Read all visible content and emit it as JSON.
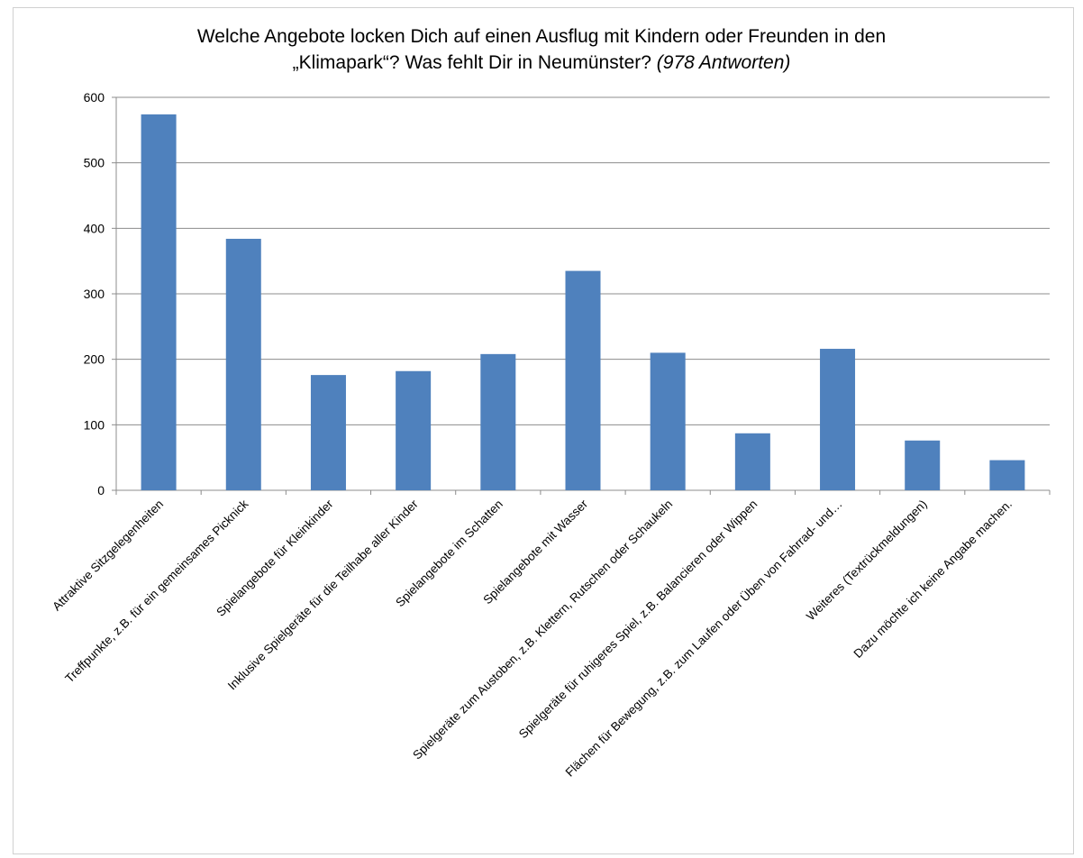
{
  "chart_data": {
    "type": "bar",
    "title_line1": "Welche Angebote locken Dich auf einen Ausflug mit Kindern oder Freunden in den",
    "title_line2": "„Klimapark“? Was fehlt Dir in Neumünster?",
    "title_suffix": "(978 Antworten)",
    "xlabel": "",
    "ylabel": "",
    "ylim": [
      0,
      600
    ],
    "yticks": [
      "0",
      "100",
      "200",
      "300",
      "400",
      "500",
      "600"
    ],
    "grid": true,
    "legend": "none",
    "bar_color": "#4f81bd",
    "categories": [
      "Attraktive Sitzgelegenheiten",
      "Treffpunkte, z.B. für ein gemeinsames Picknick",
      "Spielangebote für Kleinkinder",
      "Inklusive Spielgeräte für die Teilhabe aller Kinder",
      "Spielangebote im Schatten",
      "Spielangebote mit Wasser",
      "Spielgeräte zum Austoben, z.B. Klettern, Rutschen oder Schaukeln",
      "Spielgeräte für ruhigeres Spiel, z.B. Balancieren oder Wippen",
      "Flächen für Bewegung, z.B. zum Laufen oder Üben von Fahrrad- und…",
      "Weiteres (Textrückmeldungen)",
      "Dazu möchte ich keine Angabe machen."
    ],
    "values": [
      574,
      384,
      176,
      182,
      208,
      335,
      210,
      87,
      216,
      76,
      46
    ]
  }
}
